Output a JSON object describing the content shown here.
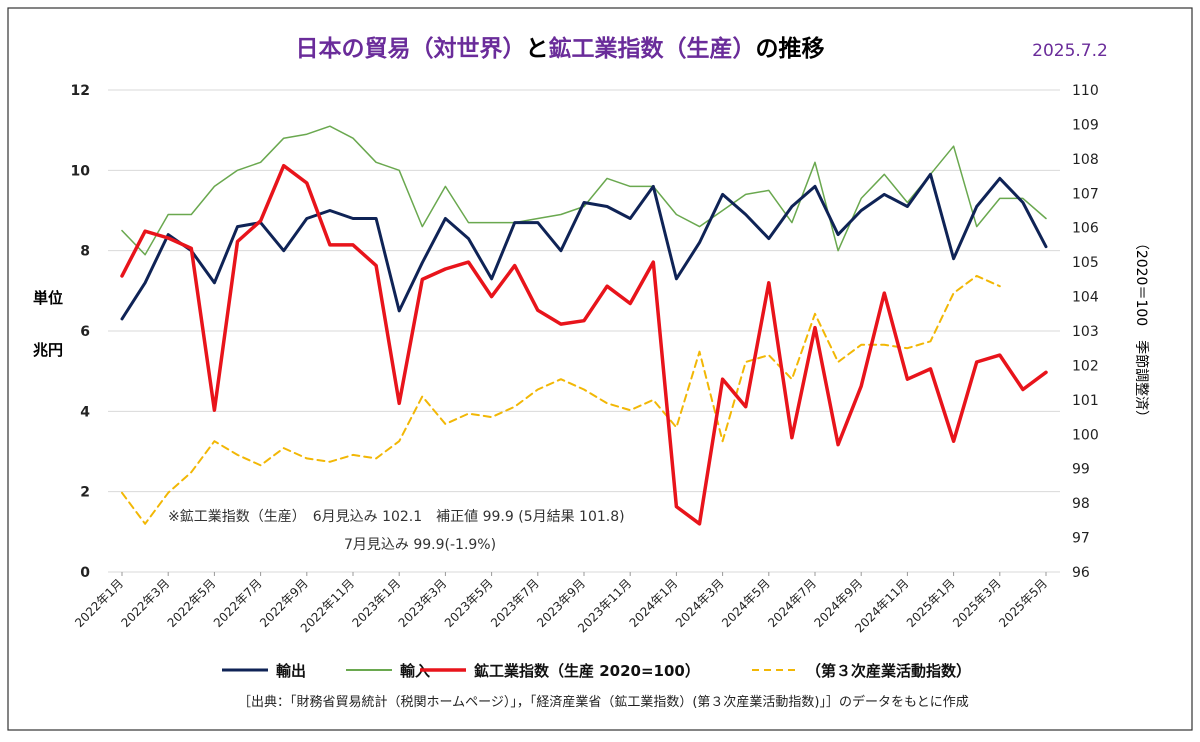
{
  "chart_data": {
    "type": "line",
    "title": {
      "parts": [
        {
          "text": "日本の貿易（対世界）",
          "color": "#6a2c9a"
        },
        {
          "text": "と",
          "color": "#000000"
        },
        {
          "text": "鉱工業指数（生産）",
          "color": "#6a2c9a"
        },
        {
          "text": "の推移",
          "color": "#000000"
        }
      ]
    },
    "date": "2025.7.2",
    "ylabel_left": [
      "単位",
      "兆円"
    ],
    "ylabel_right": "（2020＝100　季節調整済）",
    "y_left": {
      "min": 0,
      "max": 12,
      "ticks": [
        "0",
        "2",
        "4",
        "6",
        "8",
        "10",
        "12"
      ]
    },
    "y_right": {
      "min": 96,
      "max": 110,
      "ticks": [
        "96",
        "97",
        "98",
        "99",
        "100",
        "101",
        "102",
        "103",
        "104",
        "105",
        "106",
        "107",
        "108",
        "109",
        "110"
      ]
    },
    "x_tick_labels": [
      "2022年1月",
      "2022年3月",
      "2022年5月",
      "2022年7月",
      "2022年9月",
      "2022年11月",
      "2023年1月",
      "2023年3月",
      "2023年5月",
      "2023年7月",
      "2023年9月",
      "2023年11月",
      "2024年1月",
      "2024年3月",
      "2024年5月",
      "2024年7月",
      "2024年9月",
      "2024年11月",
      "2025年1月",
      "2025年3月",
      "2025年5月"
    ],
    "grid": true,
    "legend_position": "bottom",
    "series": [
      {
        "name": "輸出",
        "axis": "left",
        "color": "#0f2356",
        "style": "solid",
        "width": 3,
        "values": [
          6.3,
          7.2,
          8.4,
          8.0,
          7.2,
          8.6,
          8.7,
          8.0,
          8.8,
          9.0,
          8.8,
          8.8,
          6.5,
          7.7,
          8.8,
          8.3,
          7.3,
          8.7,
          8.7,
          8.0,
          9.2,
          9.1,
          8.8,
          9.6,
          7.3,
          8.2,
          9.4,
          8.9,
          8.3,
          9.1,
          9.6,
          8.4,
          9.0,
          9.4,
          9.1,
          9.9,
          7.8,
          9.1,
          9.8,
          9.2,
          8.1
        ]
      },
      {
        "name": "輸入",
        "axis": "left",
        "color": "#6aa84f",
        "style": "solid",
        "width": 1.5,
        "values": [
          8.5,
          7.9,
          8.9,
          8.9,
          9.6,
          10.0,
          10.2,
          10.8,
          10.9,
          11.1,
          10.8,
          10.2,
          10.0,
          8.6,
          9.6,
          8.7,
          8.7,
          8.7,
          8.8,
          8.9,
          9.1,
          9.8,
          9.6,
          9.6,
          8.9,
          8.6,
          9.0,
          9.4,
          9.5,
          8.7,
          10.2,
          8.0,
          9.3,
          9.9,
          9.2,
          9.9,
          10.6,
          8.6,
          9.3,
          9.3,
          8.8
        ]
      },
      {
        "name": "鉱工業指数（生産 2020=100）",
        "axis": "right",
        "color": "#e8141b",
        "style": "solid",
        "width": 3.5,
        "values": [
          104.6,
          105.9,
          105.7,
          105.4,
          100.7,
          105.6,
          106.2,
          107.8,
          107.3,
          105.5,
          105.5,
          104.9,
          100.9,
          104.5,
          104.8,
          105.0,
          104.0,
          104.9,
          103.6,
          103.2,
          103.3,
          104.3,
          103.8,
          105.0,
          97.9,
          97.4,
          101.6,
          100.8,
          104.4,
          99.9,
          103.1,
          99.7,
          101.4,
          104.1,
          101.6,
          101.9,
          99.8,
          102.1,
          102.3,
          101.3,
          101.8
        ]
      },
      {
        "name": "（第３次産業活動指数）",
        "axis": "right",
        "color": "#f2b705",
        "style": "dashed",
        "width": 2,
        "values": [
          98.3,
          97.4,
          98.3,
          98.9,
          99.8,
          99.4,
          99.1,
          99.6,
          99.3,
          99.2,
          99.4,
          99.3,
          99.8,
          101.1,
          100.3,
          100.6,
          100.5,
          100.8,
          101.3,
          101.6,
          101.3,
          100.9,
          100.7,
          101.0,
          100.2,
          102.4,
          99.8,
          102.1,
          102.3,
          101.6,
          103.5,
          102.1,
          102.6,
          102.6,
          102.5,
          102.7,
          104.1,
          104.6,
          104.3
        ]
      }
    ],
    "annotation": {
      "line1": "※鉱工業指数（生産）　6月見込み 102.1　補正値 99.9 (5月結果 101.8)",
      "line2": "7月見込み 99.9(-1.9%)"
    },
    "source": "［出典：「財務省貿易統計（税関ホームページ）」，「経済産業省（鉱工業指数）(第３次産業活動指数)」］のデータをもとに作成"
  }
}
